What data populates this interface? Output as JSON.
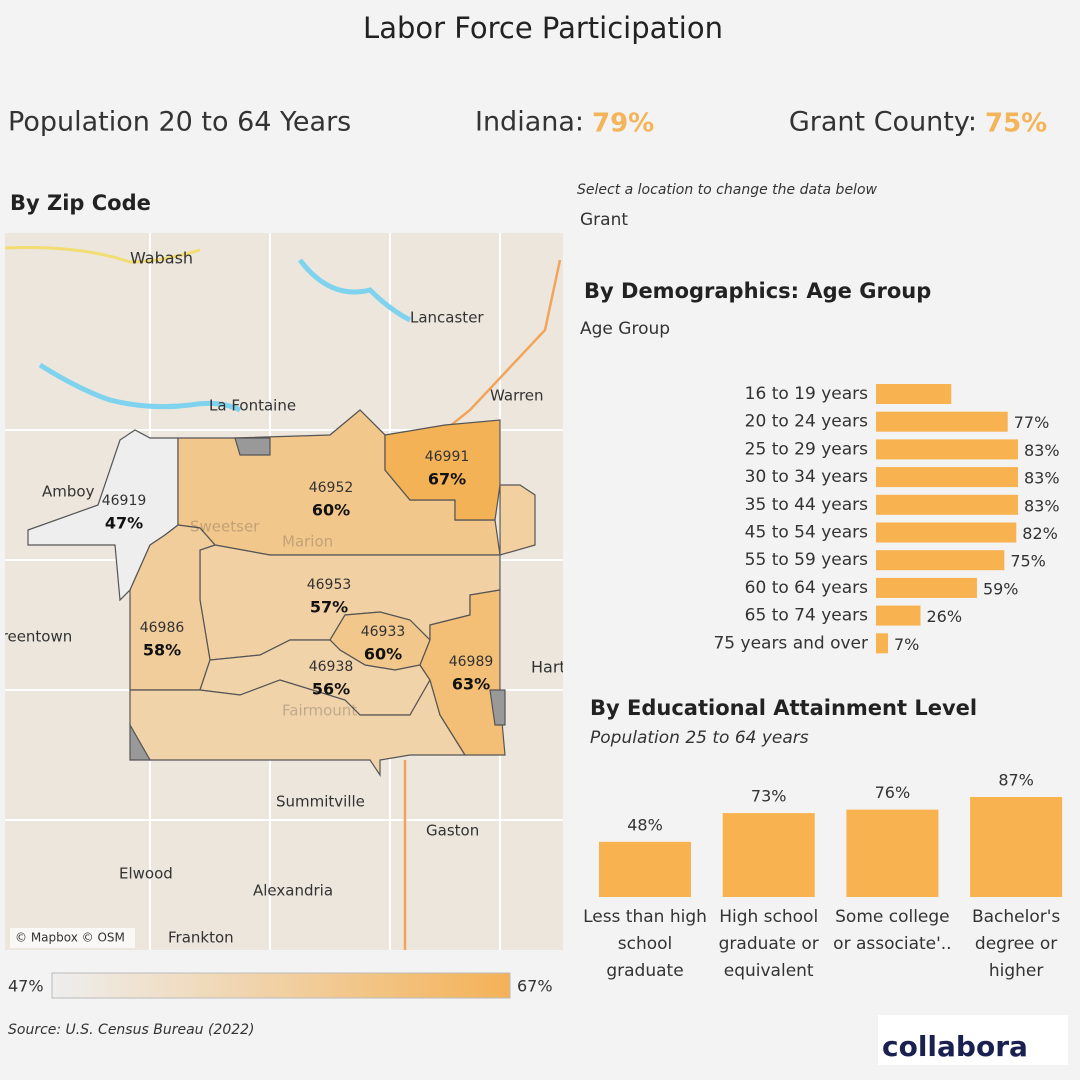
{
  "header": {
    "title": "Labor Force Participation",
    "subtitle": "Population 20 to 64 Years",
    "indiana_label": "Indiana:",
    "indiana_value": "79%",
    "county_label": "Grant County:",
    "county_value": "75%"
  },
  "map": {
    "title": "By Zip Code",
    "attribution": "© Mapbox © OSM",
    "zips": [
      {
        "zip": "46919",
        "value": 47,
        "label": "47%"
      },
      {
        "zip": "46952",
        "value": 60,
        "label": "60%"
      },
      {
        "zip": "46991",
        "value": 67,
        "label": "67%"
      },
      {
        "zip": "46953",
        "value": 57,
        "label": "57%"
      },
      {
        "zip": "46986",
        "value": 58,
        "label": "58%"
      },
      {
        "zip": "46933",
        "value": 60,
        "label": "60%"
      },
      {
        "zip": "46938",
        "value": 56,
        "label": "56%"
      },
      {
        "zip": "46989",
        "value": 63,
        "label": "63%"
      }
    ],
    "places": [
      "Wabash",
      "Lancaster",
      "Warren",
      "La Fontaine",
      "Amboy",
      "Greentown",
      "Summitville",
      "Gaston",
      "Elwood",
      "Alexandria",
      "Frankton",
      "Hartford City",
      "Marion",
      "Sweetser",
      "Fairmount"
    ],
    "legend": {
      "min": {
        "value": 47,
        "label": "47%"
      },
      "max": {
        "value": 67,
        "label": "67%"
      },
      "colors": [
        "#eeeeee",
        "#f4b257"
      ]
    }
  },
  "selector": {
    "prompt": "Select a location to change the data below",
    "selection": "Grant"
  },
  "chart_data": [
    {
      "type": "bar",
      "orientation": "horizontal",
      "title": "By Demographics: Age Group",
      "subtitle": "Age Group",
      "categories": [
        "16 to 19 years",
        "20 to 24 years",
        "25 to 29 years",
        "30 to 34 years",
        "35 to 44 years",
        "45 to 54 years",
        "55 to 59 years",
        "60 to 64 years",
        "65 to 74 years",
        "75 years and over"
      ],
      "values": [
        44,
        77,
        83,
        83,
        83,
        82,
        75,
        59,
        26,
        7
      ],
      "value_labels": [
        null,
        "77%",
        "83%",
        "83%",
        "83%",
        "82%",
        "75%",
        "59%",
        "26%",
        "7%"
      ],
      "color": "#f8b24f"
    },
    {
      "type": "bar",
      "orientation": "vertical",
      "title": "By Educational Attainment Level",
      "subtitle": "Population 25 to 64 years",
      "categories": [
        "Less than high school graduate",
        "High school graduate or equivalent",
        "Some college or associate'..",
        "Bachelor's degree or higher"
      ],
      "values": [
        48,
        73,
        76,
        87
      ],
      "value_labels": [
        "48%",
        "73%",
        "76%",
        "87%"
      ],
      "color": "#f8b24f"
    }
  ],
  "footer": {
    "source": "Source: U.S. Census Bureau (2022)",
    "logo": "collabora"
  }
}
